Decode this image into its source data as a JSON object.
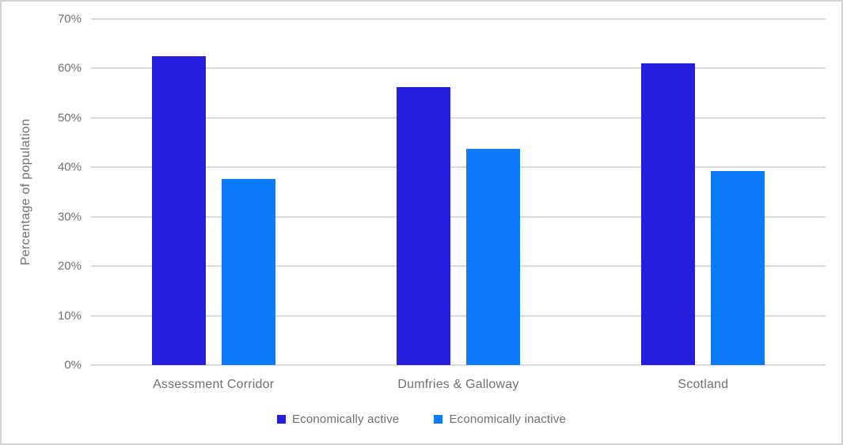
{
  "chart_data": {
    "type": "bar",
    "title": "",
    "xlabel": "",
    "ylabel": "Percentage of population",
    "categories": [
      "Assessment Corridor",
      "Dumfries & Galloway",
      "Scotland"
    ],
    "series": [
      {
        "name": "Economically active",
        "color": "#251fdd",
        "values": [
          62.4,
          56.3,
          61.0
        ]
      },
      {
        "name": "Economically inactive",
        "color": "#0d7cfa",
        "values": [
          37.6,
          43.7,
          39.2
        ]
      }
    ],
    "ylim": [
      0,
      70
    ],
    "ytick_step": 10,
    "ytick_suffix": "%",
    "grid": true,
    "legend_position": "bottom"
  },
  "style": {
    "gridline_color": "#dadada",
    "text_color": "#6f6f6f",
    "background": "#ffffff",
    "border_color": "#d2d2d2"
  }
}
